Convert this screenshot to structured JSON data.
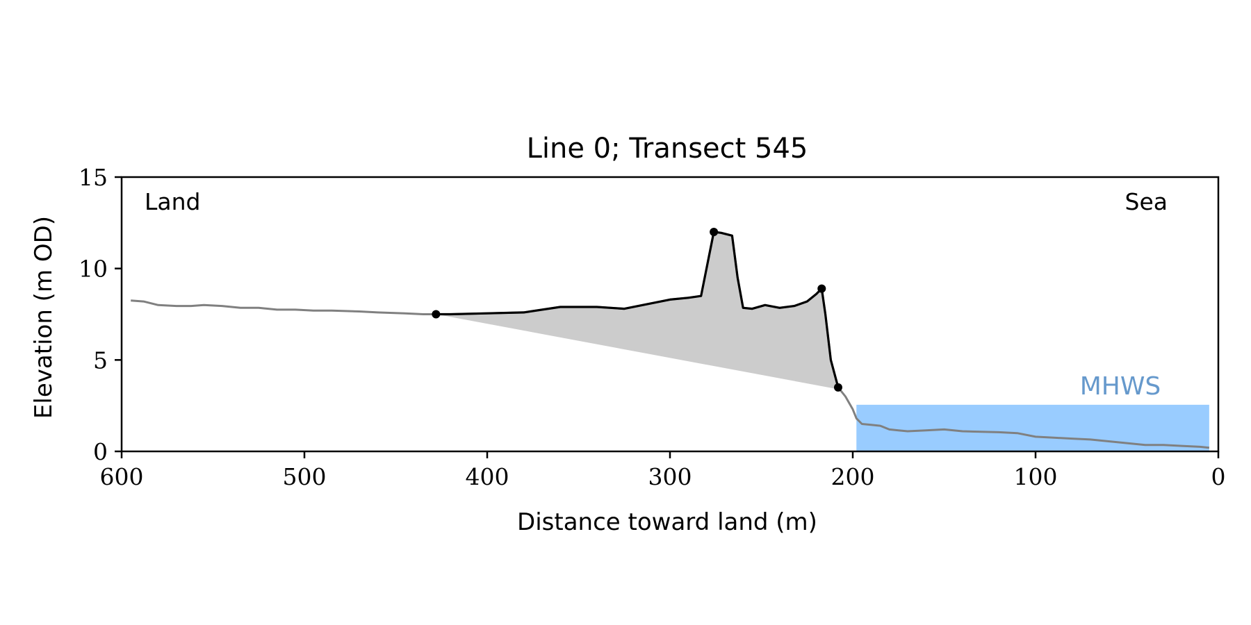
{
  "chart_data": {
    "type": "line",
    "title": "Line 0; Transect 545",
    "xlabel": "Distance toward land (m)",
    "ylabel": "Elevation (m OD)",
    "xlim": [
      600,
      0
    ],
    "ylim": [
      0,
      15
    ],
    "x_ticks": [
      600,
      500,
      400,
      300,
      200,
      100,
      0
    ],
    "y_ticks": [
      0,
      5,
      10,
      15
    ],
    "grid": false,
    "annotations": {
      "land": "Land",
      "sea": "Sea",
      "mhws_label": "MHWS"
    },
    "mhws": {
      "level": 2.55,
      "x_start": 198,
      "x_end": 5
    },
    "series": [
      {
        "role": "full profile",
        "color": "#808080",
        "x": [
          595,
          588,
          580,
          570,
          562,
          555,
          545,
          535,
          525,
          515,
          505,
          495,
          485,
          470,
          460,
          445,
          435,
          428,
          420,
          400,
          380,
          360,
          340,
          325,
          310,
          300,
          290,
          283,
          279,
          276,
          272,
          266,
          263,
          260,
          255,
          248,
          240,
          232,
          225,
          220,
          217,
          215,
          212,
          208,
          204,
          200,
          198,
          195,
          190,
          185,
          180,
          175,
          170,
          160,
          150,
          140,
          120,
          110,
          100,
          90,
          80,
          70,
          60,
          50,
          40,
          30,
          20,
          10,
          5
        ],
        "y": [
          8.25,
          8.2,
          8.0,
          7.95,
          7.95,
          8.0,
          7.95,
          7.85,
          7.85,
          7.75,
          7.75,
          7.7,
          7.7,
          7.65,
          7.6,
          7.55,
          7.5,
          7.5,
          7.5,
          7.55,
          7.6,
          7.9,
          7.9,
          7.8,
          8.1,
          8.3,
          8.4,
          8.5,
          10.5,
          12.0,
          11.95,
          11.8,
          9.5,
          7.85,
          7.8,
          8.0,
          7.85,
          7.95,
          8.2,
          8.6,
          8.9,
          7.5,
          5.0,
          3.5,
          3.0,
          2.3,
          1.8,
          1.5,
          1.45,
          1.4,
          1.2,
          1.15,
          1.1,
          1.15,
          1.2,
          1.1,
          1.05,
          1.0,
          0.8,
          0.75,
          0.7,
          0.65,
          0.55,
          0.45,
          0.35,
          0.35,
          0.3,
          0.25,
          0.2
        ]
      },
      {
        "role": "dune section",
        "color": "#000000",
        "x": [
          428,
          420,
          400,
          380,
          360,
          340,
          325,
          310,
          300,
          290,
          283,
          279,
          276,
          272,
          266,
          263,
          260,
          255,
          248,
          240,
          232,
          225,
          220,
          217,
          215,
          212,
          208
        ],
        "y": [
          7.5,
          7.5,
          7.55,
          7.6,
          7.9,
          7.9,
          7.8,
          8.1,
          8.3,
          8.4,
          8.5,
          10.5,
          12.0,
          11.95,
          11.8,
          9.5,
          7.85,
          7.8,
          8.0,
          7.85,
          7.95,
          8.2,
          8.6,
          8.9,
          7.5,
          5.0,
          3.5
        ]
      }
    ],
    "key_points": {
      "x": [
        428,
        276,
        217,
        208
      ],
      "y": [
        7.5,
        12.0,
        8.9,
        3.5
      ]
    },
    "fill": {
      "color": "#cccccc",
      "baseline_from": [
        428,
        7.5
      ],
      "baseline_to": [
        208,
        3.4
      ]
    }
  }
}
